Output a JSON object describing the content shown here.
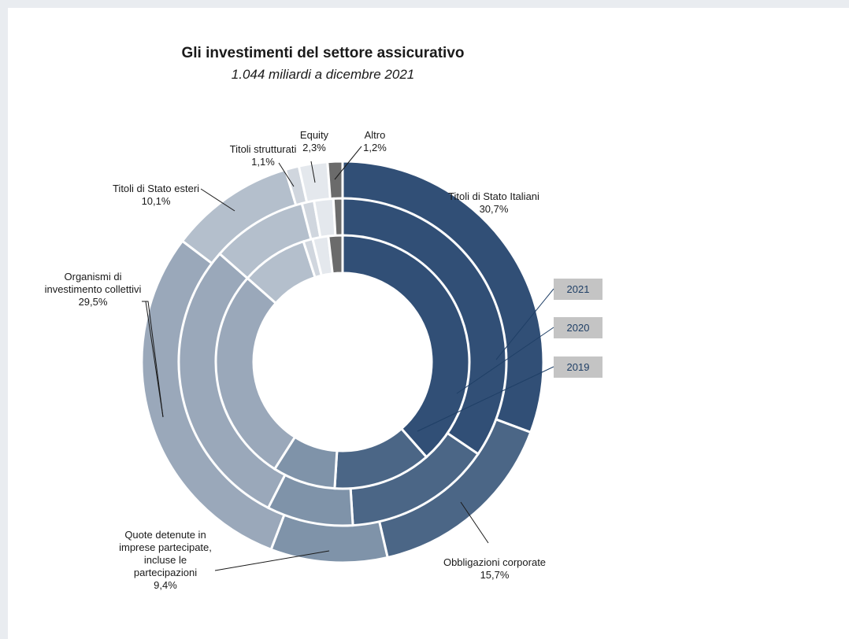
{
  "chart_data": {
    "type": "pie",
    "variant": "multi-ring-donut",
    "title": "Gli investimenti del settore assicurativo",
    "subtitle": "1.044 miliardi a dicembre 2021",
    "rings": [
      "2021",
      "2020",
      "2019"
    ],
    "categories": [
      {
        "key": "titoli_stato_italiani",
        "label_lines": [
          "Titoli di Stato Italiani",
          "30,7%"
        ],
        "color": "#314f76"
      },
      {
        "key": "obbligazioni_corporate",
        "label_lines": [
          "Obbligazioni corporate",
          "15,7%"
        ],
        "color": "#4b6686"
      },
      {
        "key": "quote_partecipate",
        "label_lines": [
          "Quote detenute in",
          "imprese partecipate,",
          "incluse le",
          "partecipazioni",
          "9,4%"
        ],
        "color": "#7f93a9"
      },
      {
        "key": "oicr",
        "label_lines": [
          "Organismi di",
          "investimento collettivi",
          "29,5%"
        ],
        "color": "#9aa8ba"
      },
      {
        "key": "titoli_stato_esteri",
        "label_lines": [
          "Titoli di Stato esteri",
          "10,1%"
        ],
        "color": "#b4bfcc"
      },
      {
        "key": "titoli_strutturati",
        "label_lines": [
          "Titoli strutturati",
          "1,1%"
        ],
        "color": "#d0d6de"
      },
      {
        "key": "equity",
        "label_lines": [
          "Equity",
          "2,3%"
        ],
        "color": "#e4e8ed"
      },
      {
        "key": "altro",
        "label_lines": [
          "Altro",
          "1,2%"
        ],
        "color": "#6b6b6b"
      }
    ],
    "series": [
      {
        "ring": "2021",
        "values": [
          30.7,
          15.7,
          9.4,
          29.5,
          10.1,
          1.1,
          2.3,
          1.2
        ]
      },
      {
        "ring": "2020",
        "values": [
          34.5,
          14.5,
          8.5,
          29.0,
          9.5,
          1.2,
          1.9,
          0.9
        ]
      },
      {
        "ring": "2019",
        "values": [
          38.5,
          12.5,
          8.0,
          27.5,
          8.5,
          1.2,
          2.0,
          1.8
        ]
      }
    ]
  }
}
